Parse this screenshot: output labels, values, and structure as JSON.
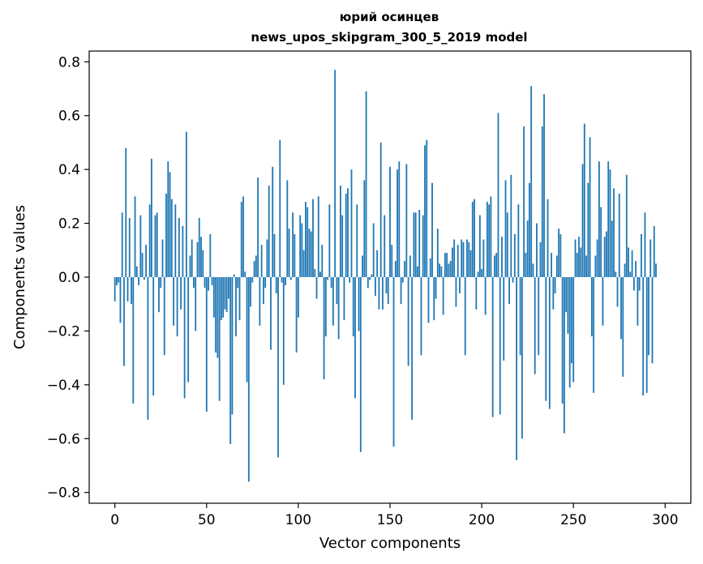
{
  "chart_data": {
    "type": "bar",
    "title": "юрий осинцев",
    "subtitle": "news_upos_skipgram_300_5_2019 model",
    "xlabel": "Vector components",
    "ylabel": "Components values",
    "xlim": [
      -14,
      314
    ],
    "ylim": [
      -0.84,
      0.84
    ],
    "xticks": [
      0,
      50,
      100,
      150,
      200,
      250,
      300
    ],
    "yticks": [
      -0.8,
      -0.6,
      -0.4,
      -0.2,
      0.0,
      0.2,
      0.4,
      0.6,
      0.8
    ],
    "ytick_labels": [
      "−0.8",
      "−0.6",
      "−0.4",
      "−0.2",
      "0.0",
      "0.2",
      "0.4",
      "0.6",
      "0.8"
    ],
    "xtick_labels": [
      "0",
      "50",
      "100",
      "150",
      "200",
      "250",
      "300"
    ],
    "grid": false,
    "legend": "none",
    "bar_color": "#1f77b4",
    "x_start": 0,
    "values": [
      -0.09,
      -0.03,
      -0.02,
      -0.17,
      0.24,
      -0.33,
      0.48,
      -0.09,
      0.22,
      -0.1,
      -0.47,
      0.3,
      0.04,
      -0.03,
      0.23,
      0.09,
      -0.01,
      0.12,
      -0.53,
      0.27,
      0.44,
      -0.44,
      0.23,
      0.24,
      -0.13,
      -0.04,
      0.14,
      -0.29,
      0.31,
      0.43,
      0.39,
      0.29,
      -0.18,
      0.27,
      -0.22,
      0.22,
      -0.12,
      0.19,
      -0.45,
      0.54,
      -0.39,
      0.08,
      0.14,
      -0.04,
      -0.2,
      0.13,
      0.22,
      0.15,
      0.1,
      -0.04,
      -0.5,
      -0.05,
      0.16,
      -0.03,
      -0.15,
      -0.28,
      -0.3,
      -0.46,
      -0.16,
      -0.15,
      -0.12,
      -0.13,
      -0.08,
      -0.62,
      -0.51,
      0.01,
      -0.22,
      -0.04,
      -0.16,
      0.28,
      0.3,
      0.02,
      -0.39,
      -0.76,
      -0.11,
      -0.02,
      0.06,
      0.08,
      0.37,
      -0.18,
      0.12,
      -0.1,
      -0.04,
      0.14,
      0.34,
      -0.27,
      0.41,
      0.16,
      -0.06,
      -0.67,
      0.51,
      -0.02,
      -0.4,
      -0.03,
      0.36,
      0.18,
      -0.01,
      0.24,
      0.16,
      -0.28,
      -0.15,
      0.23,
      0.2,
      0.1,
      0.28,
      0.26,
      0.18,
      0.17,
      0.29,
      0.03,
      -0.08,
      0.3,
      0.02,
      0.12,
      -0.38,
      -0.22,
      -0.01,
      0.27,
      -0.04,
      -0.18,
      0.77,
      -0.1,
      -0.23,
      0.34,
      0.23,
      -0.16,
      0.31,
      0.33,
      -0.02,
      0.4,
      -0.22,
      -0.45,
      0.27,
      -0.2,
      -0.65,
      0.08,
      0.36,
      0.69,
      -0.04,
      -0.01,
      0.01,
      0.2,
      -0.07,
      0.1,
      -0.12,
      0.5,
      -0.12,
      0.23,
      -0.06,
      -0.1,
      0.41,
      0.12,
      -0.63,
      0.06,
      0.4,
      0.43,
      -0.1,
      -0.02,
      0.06,
      0.42,
      -0.33,
      0.08,
      -0.53,
      0.24,
      0.24,
      0.04,
      0.25,
      -0.29,
      0.23,
      0.49,
      0.51,
      -0.17,
      0.07,
      0.35,
      -0.16,
      -0.08,
      0.18,
      0.05,
      0.04,
      -0.14,
      0.09,
      0.09,
      0.05,
      0.06,
      0.11,
      0.14,
      -0.11,
      0.12,
      -0.06,
      0.14,
      0.13,
      -0.29,
      0.14,
      0.13,
      0.1,
      0.28,
      0.29,
      -0.12,
      0.02,
      0.23,
      0.03,
      0.14,
      -0.14,
      0.28,
      0.27,
      0.3,
      -0.52,
      0.08,
      0.09,
      0.61,
      -0.51,
      0.15,
      -0.31,
      0.36,
      0.24,
      -0.1,
      0.38,
      -0.02,
      0.16,
      -0.68,
      0.27,
      -0.29,
      -0.6,
      0.56,
      0.09,
      0.21,
      0.35,
      0.71,
      0.05,
      -0.36,
      0.2,
      -0.29,
      0.13,
      0.56,
      0.68,
      -0.46,
      0.29,
      -0.49,
      0.09,
      -0.12,
      -0.06,
      0.08,
      0.18,
      0.16,
      -0.47,
      -0.58,
      -0.13,
      -0.21,
      -0.41,
      -0.32,
      -0.39,
      0.14,
      0.09,
      0.15,
      0.11,
      0.42,
      0.57,
      0.08,
      0.35,
      0.52,
      -0.22,
      -0.43,
      0.08,
      0.14,
      0.43,
      0.26,
      -0.18,
      0.15,
      0.17,
      0.43,
      0.4,
      0.21,
      0.33,
      0.02,
      -0.11,
      0.31,
      -0.23,
      -0.37,
      0.05,
      0.38,
      0.11,
      0.02,
      0.1,
      -0.05,
      0.06,
      -0.18,
      -0.05,
      0.16,
      -0.44,
      0.24,
      -0.43,
      -0.29,
      0.14,
      -0.32,
      0.19,
      0.05
    ]
  }
}
